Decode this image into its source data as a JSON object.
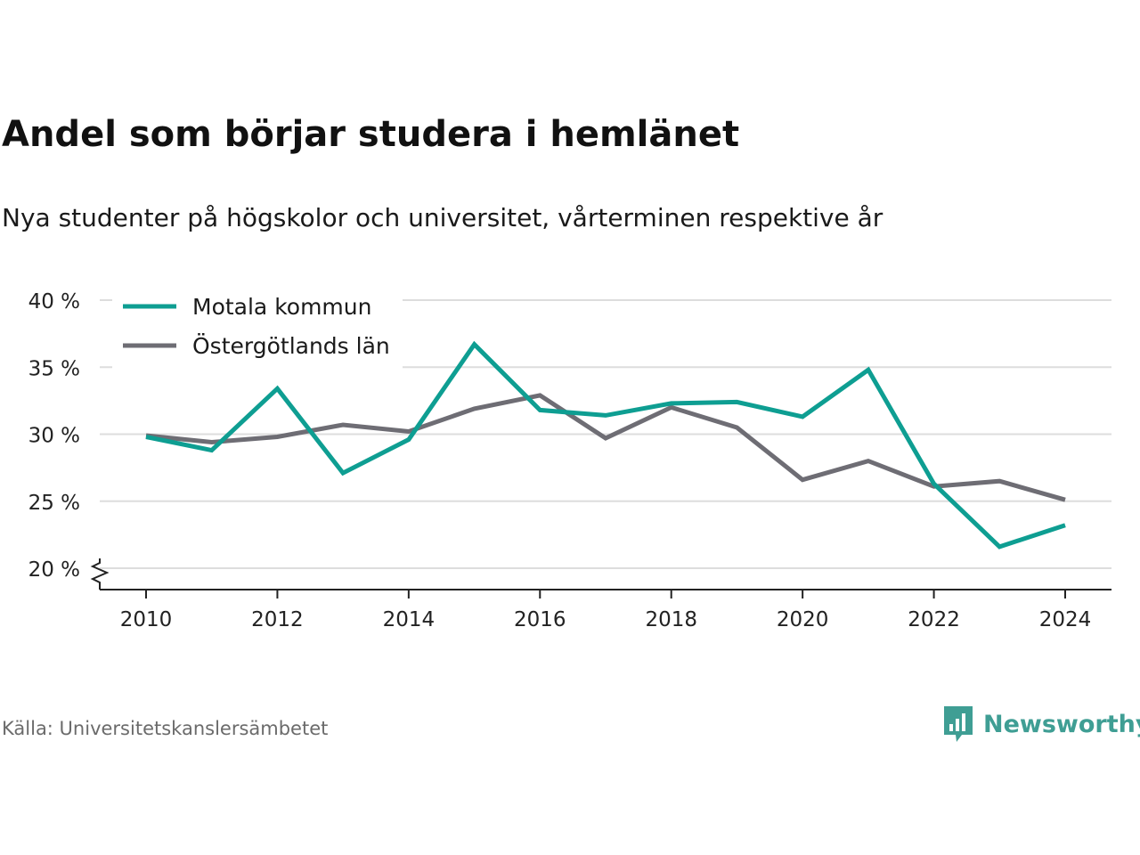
{
  "title": "Andel som börjar studera i hemlänet",
  "subtitle": "Nya studenter på högskolor och universitet, vårterminen respektive år",
  "source": "Källa: Universitetskanslersämbetet",
  "brand": {
    "name": "Newsworthy",
    "color": "#3f9e94",
    "icon": "newsworthy-logo-icon"
  },
  "colors": {
    "motala": "#0e9e92",
    "ostergotland": "#6e6d74",
    "grid": "#dddddd",
    "axis": "#222222"
  },
  "chart_data": {
    "type": "line",
    "title": "Andel som börjar studera i hemlänet",
    "subtitle": "Nya studenter på högskolor och universitet, vårterminen respektive år",
    "x": [
      2010,
      2011,
      2012,
      2013,
      2014,
      2015,
      2016,
      2017,
      2018,
      2019,
      2020,
      2021,
      2022,
      2023,
      2024
    ],
    "x_ticks": [
      2010,
      2012,
      2014,
      2016,
      2018,
      2020,
      2022,
      2024
    ],
    "x_tick_labels": [
      "2010",
      "2012",
      "2014",
      "2016",
      "2018",
      "2020",
      "2022",
      "2024"
    ],
    "y_ticks": [
      20,
      25,
      30,
      35,
      40
    ],
    "y_tick_labels": [
      "20 %",
      "25 %",
      "30 %",
      "35 %",
      "40 %"
    ],
    "ylim": [
      20,
      40
    ],
    "xlim": [
      2010,
      2024
    ],
    "y_axis_break": true,
    "grid": true,
    "legend_position": "top-left",
    "series": [
      {
        "name": "Motala kommun",
        "color": "#0e9e92",
        "values": [
          29.8,
          28.8,
          33.4,
          27.1,
          29.6,
          36.7,
          31.8,
          31.4,
          32.3,
          32.4,
          31.3,
          34.8,
          26.3,
          21.6,
          23.2
        ]
      },
      {
        "name": "Östergötlands län",
        "color": "#6e6d74",
        "values": [
          29.9,
          29.4,
          29.8,
          30.7,
          30.2,
          31.9,
          32.9,
          29.7,
          32.0,
          30.5,
          26.6,
          28.0,
          26.1,
          26.5,
          25.1
        ]
      }
    ]
  }
}
